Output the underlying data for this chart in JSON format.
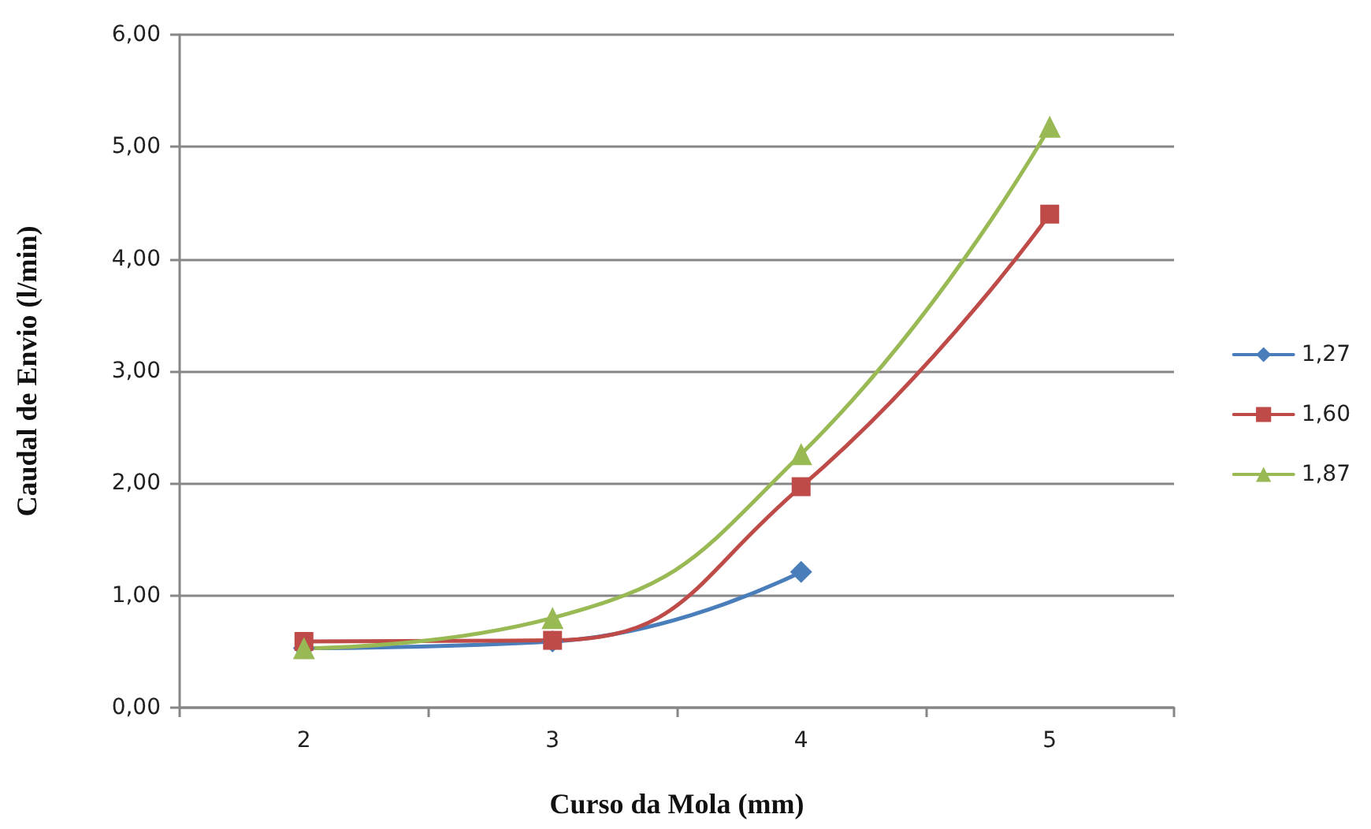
{
  "chart_data": {
    "type": "line",
    "xlabel": "Curso da Mola (mm)",
    "ylabel": "Caudal de Envio (l/min)",
    "categories": [
      "2",
      "3",
      "4",
      "5"
    ],
    "series": [
      {
        "name": "1,27",
        "color": "#4a7ebb",
        "marker": "diamond",
        "values": [
          0.53,
          0.59,
          1.21,
          null
        ]
      },
      {
        "name": "1,60",
        "color": "#be4b48",
        "marker": "square",
        "values": [
          0.59,
          0.6,
          1.97,
          4.4
        ]
      },
      {
        "name": "1,87",
        "color": "#98b954",
        "marker": "triangle",
        "values": [
          0.53,
          0.8,
          2.26,
          5.18
        ]
      }
    ],
    "ylim": [
      0,
      6
    ],
    "yticks": [
      {
        "value": 0,
        "label": "0,00"
      },
      {
        "value": 1,
        "label": "1,00"
      },
      {
        "value": 2,
        "label": "2,00"
      },
      {
        "value": 3,
        "label": "3,00"
      },
      {
        "value": 4,
        "label": "4,00"
      },
      {
        "value": 5,
        "label": "5,00"
      },
      {
        "value": 6,
        "label": "6,00"
      }
    ],
    "grid": "y",
    "legend": "right",
    "line_style": "solid"
  }
}
